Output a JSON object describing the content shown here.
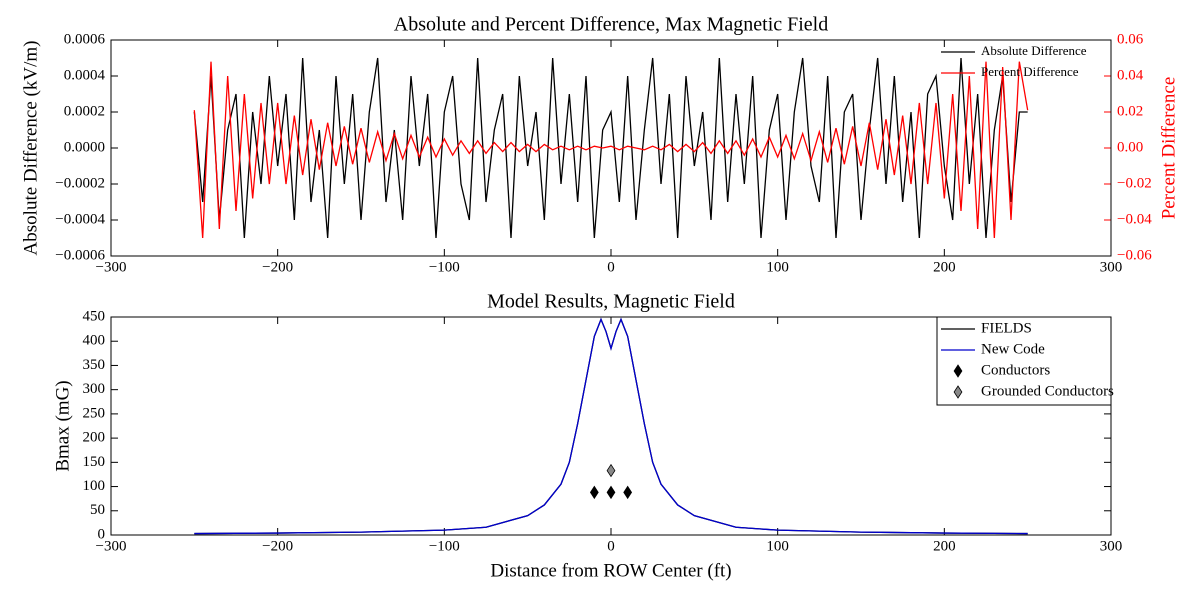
{
  "chart_data": [
    {
      "type": "line",
      "title": "Absolute and Percent Difference, Max Magnetic Field",
      "ylabel": "Absolute Difference (kV/m)",
      "y2label": "Percent Difference",
      "legend": "upper right",
      "legend_frame": false,
      "x": [
        -250,
        -245,
        -240,
        -235,
        -230,
        -225,
        -220,
        -215,
        -210,
        -205,
        -200,
        -195,
        -190,
        -185,
        -180,
        -175,
        -170,
        -165,
        -160,
        -155,
        -150,
        -145,
        -140,
        -135,
        -130,
        -125,
        -120,
        -115,
        -110,
        -105,
        -100,
        -95,
        -90,
        -85,
        -80,
        -75,
        -70,
        -65,
        -60,
        -55,
        -50,
        -45,
        -40,
        -35,
        -30,
        -25,
        -20,
        -15,
        -10,
        -5,
        0,
        5,
        10,
        15,
        20,
        25,
        30,
        35,
        40,
        45,
        50,
        55,
        60,
        65,
        70,
        75,
        80,
        85,
        90,
        95,
        100,
        105,
        110,
        115,
        120,
        125,
        130,
        135,
        140,
        145,
        150,
        155,
        160,
        165,
        170,
        175,
        180,
        185,
        190,
        195,
        200,
        205,
        210,
        215,
        220,
        225,
        230,
        235,
        240,
        245,
        250
      ],
      "series": [
        {
          "name": "Absolute Difference",
          "color": "#000000",
          "axis": "y",
          "values": [
            0.0002,
            -0.0003,
            0.0004,
            -0.0004,
            0.0001,
            0.0003,
            -0.0005,
            0.0002,
            -0.0002,
            0.0004,
            -0.0001,
            0.0003,
            -0.0004,
            0.0005,
            -0.0003,
            0.0001,
            -0.0005,
            0.0004,
            -0.0002,
            0.0003,
            -0.0004,
            0.0002,
            0.0005,
            -0.0003,
            0.0001,
            -0.0004,
            0.0004,
            -0.0001,
            0.0003,
            -0.0005,
            0.0002,
            0.0004,
            -0.0002,
            -0.0004,
            0.0005,
            -0.0003,
            0.0001,
            0.0003,
            -0.0005,
            0.0004,
            -0.0001,
            0.0002,
            -0.0004,
            0.0005,
            -0.0002,
            0.0003,
            -0.0003,
            0.0004,
            -0.0005,
            0.0001,
            0.0002,
            -0.0003,
            0.0004,
            -0.0004,
            0.0001,
            0.0005,
            -0.0002,
            0.0003,
            -0.0005,
            0.0004,
            -0.0001,
            0.0002,
            -0.0004,
            0.0005,
            -0.0003,
            0.0003,
            -0.0002,
            0.0004,
            -0.0005,
            0.0001,
            0.0003,
            -0.0004,
            0.0002,
            0.0005,
            -0.0001,
            -0.0003,
            0.0004,
            -0.0005,
            0.0002,
            0.0003,
            -0.0004,
            0.0001,
            0.0005,
            -0.0002,
            0.0004,
            -0.0003,
            0.0002,
            -0.0005,
            0.0003,
            0.0004,
            -0.0001,
            -0.0004,
            0.0005,
            -0.0002,
            0.0003,
            -0.0005,
            0.0001,
            0.0004,
            -0.0003,
            0.0002,
            0.0002
          ]
        },
        {
          "name": "Percent Difference",
          "color": "#ff0000",
          "axis": "y2",
          "values": [
            0.021,
            -0.05,
            0.048,
            -0.045,
            0.04,
            -0.035,
            0.03,
            -0.028,
            0.025,
            -0.02,
            0.025,
            -0.02,
            0.018,
            -0.015,
            0.016,
            -0.012,
            0.014,
            -0.01,
            0.012,
            -0.009,
            0.011,
            -0.008,
            0.009,
            -0.007,
            0.008,
            -0.006,
            0.007,
            -0.005,
            0.006,
            -0.005,
            0.005,
            -0.004,
            0.004,
            -0.003,
            0.004,
            -0.003,
            0.003,
            -0.002,
            0.003,
            -0.002,
            0.002,
            -0.002,
            0.002,
            -0.001,
            0.001,
            -0.001,
            0.001,
            -0.001,
            0.001,
            0,
            0.001,
            -0.001,
            0.001,
            0,
            -0.001,
            0.001,
            -0.001,
            0.002,
            -0.002,
            0.002,
            -0.002,
            0.003,
            -0.003,
            0.004,
            -0.003,
            0.004,
            -0.004,
            0.005,
            -0.005,
            0.006,
            -0.005,
            0.007,
            -0.006,
            0.008,
            -0.007,
            0.009,
            -0.008,
            0.011,
            -0.009,
            0.012,
            -0.01,
            0.014,
            -0.012,
            0.016,
            -0.015,
            0.018,
            -0.02,
            0.025,
            -0.02,
            0.025,
            -0.028,
            0.03,
            -0.035,
            0.04,
            -0.045,
            0.048,
            -0.05,
            0.045,
            -0.04,
            0.048,
            0.021
          ]
        }
      ],
      "xlim": [
        -300,
        300
      ],
      "xticks": [
        {
          "value": -300,
          "label": "−300"
        },
        {
          "value": -200,
          "label": "−200"
        },
        {
          "value": -100,
          "label": "−100"
        },
        0,
        100,
        200,
        300
      ],
      "ylim": [
        -0.0006,
        0.0006
      ],
      "yticks": [
        {
          "value": -0.0006,
          "label": "−0.0006"
        },
        {
          "value": -0.0004,
          "label": "−0.0004"
        },
        {
          "value": -0.0002,
          "label": "−0.0002"
        },
        {
          "value": 0,
          "label": "0.0000"
        },
        0.0002,
        0.0004,
        0.0006
      ],
      "y2lim": [
        -0.06,
        0.06
      ],
      "y2ticks": [
        {
          "value": -0.06,
          "label": "−0.06"
        },
        {
          "value": -0.04,
          "label": "−0.04"
        },
        {
          "value": -0.02,
          "label": "−0.02"
        },
        {
          "value": 0,
          "label": "0.00"
        },
        0.02,
        0.04,
        0.06
      ],
      "y2color": "#ff0000"
    },
    {
      "type": "line",
      "title": "Model Results, Magnetic Field",
      "xlabel": "Distance from ROW Center (ft)",
      "ylabel": "Bmax (mG)",
      "legend": "upper right",
      "legend_frame": true,
      "series": [
        {
          "name": "FIELDS",
          "color": "#000000",
          "x": [
            -250,
            -200,
            -150,
            -100,
            -75,
            -50,
            -40,
            -30,
            -25,
            -20,
            -15,
            -10,
            -6,
            -3,
            0,
            3,
            6,
            10,
            15,
            20,
            25,
            30,
            40,
            50,
            75,
            100,
            150,
            200,
            250
          ],
          "values": [
            3,
            4,
            6,
            10,
            16,
            40,
            62,
            105,
            150,
            230,
            320,
            410,
            445,
            420,
            385,
            420,
            445,
            410,
            320,
            230,
            150,
            105,
            62,
            40,
            16,
            10,
            6,
            4,
            3
          ]
        },
        {
          "name": "New Code",
          "color": "#0000cc",
          "x": [
            -250,
            -200,
            -150,
            -100,
            -75,
            -50,
            -40,
            -30,
            -25,
            -20,
            -15,
            -10,
            -6,
            -3,
            0,
            3,
            6,
            10,
            15,
            20,
            25,
            30,
            40,
            50,
            75,
            100,
            150,
            200,
            250
          ],
          "values": [
            3,
            4,
            6,
            10,
            16,
            40,
            62,
            105,
            150,
            230,
            320,
            410,
            445,
            420,
            385,
            420,
            445,
            410,
            320,
            230,
            150,
            105,
            62,
            40,
            16,
            10,
            6,
            4,
            3
          ]
        },
        {
          "name": "Conductors",
          "color": "#000000",
          "marker": "diamond",
          "x": [
            -10,
            0,
            10
          ],
          "values": [
            88,
            88,
            88
          ]
        },
        {
          "name": "Grounded Conductors",
          "color": "#888888",
          "marker": "diamond",
          "x": [
            0
          ],
          "values": [
            133
          ]
        }
      ],
      "xlim": [
        -300,
        300
      ],
      "xticks": [
        {
          "value": -300,
          "label": "−300"
        },
        {
          "value": -200,
          "label": "−200"
        },
        {
          "value": -100,
          "label": "−100"
        },
        0,
        100,
        200,
        300
      ],
      "ylim": [
        0,
        450
      ],
      "yticks": [
        0,
        50,
        100,
        150,
        200,
        250,
        300,
        350,
        400,
        450
      ]
    }
  ]
}
